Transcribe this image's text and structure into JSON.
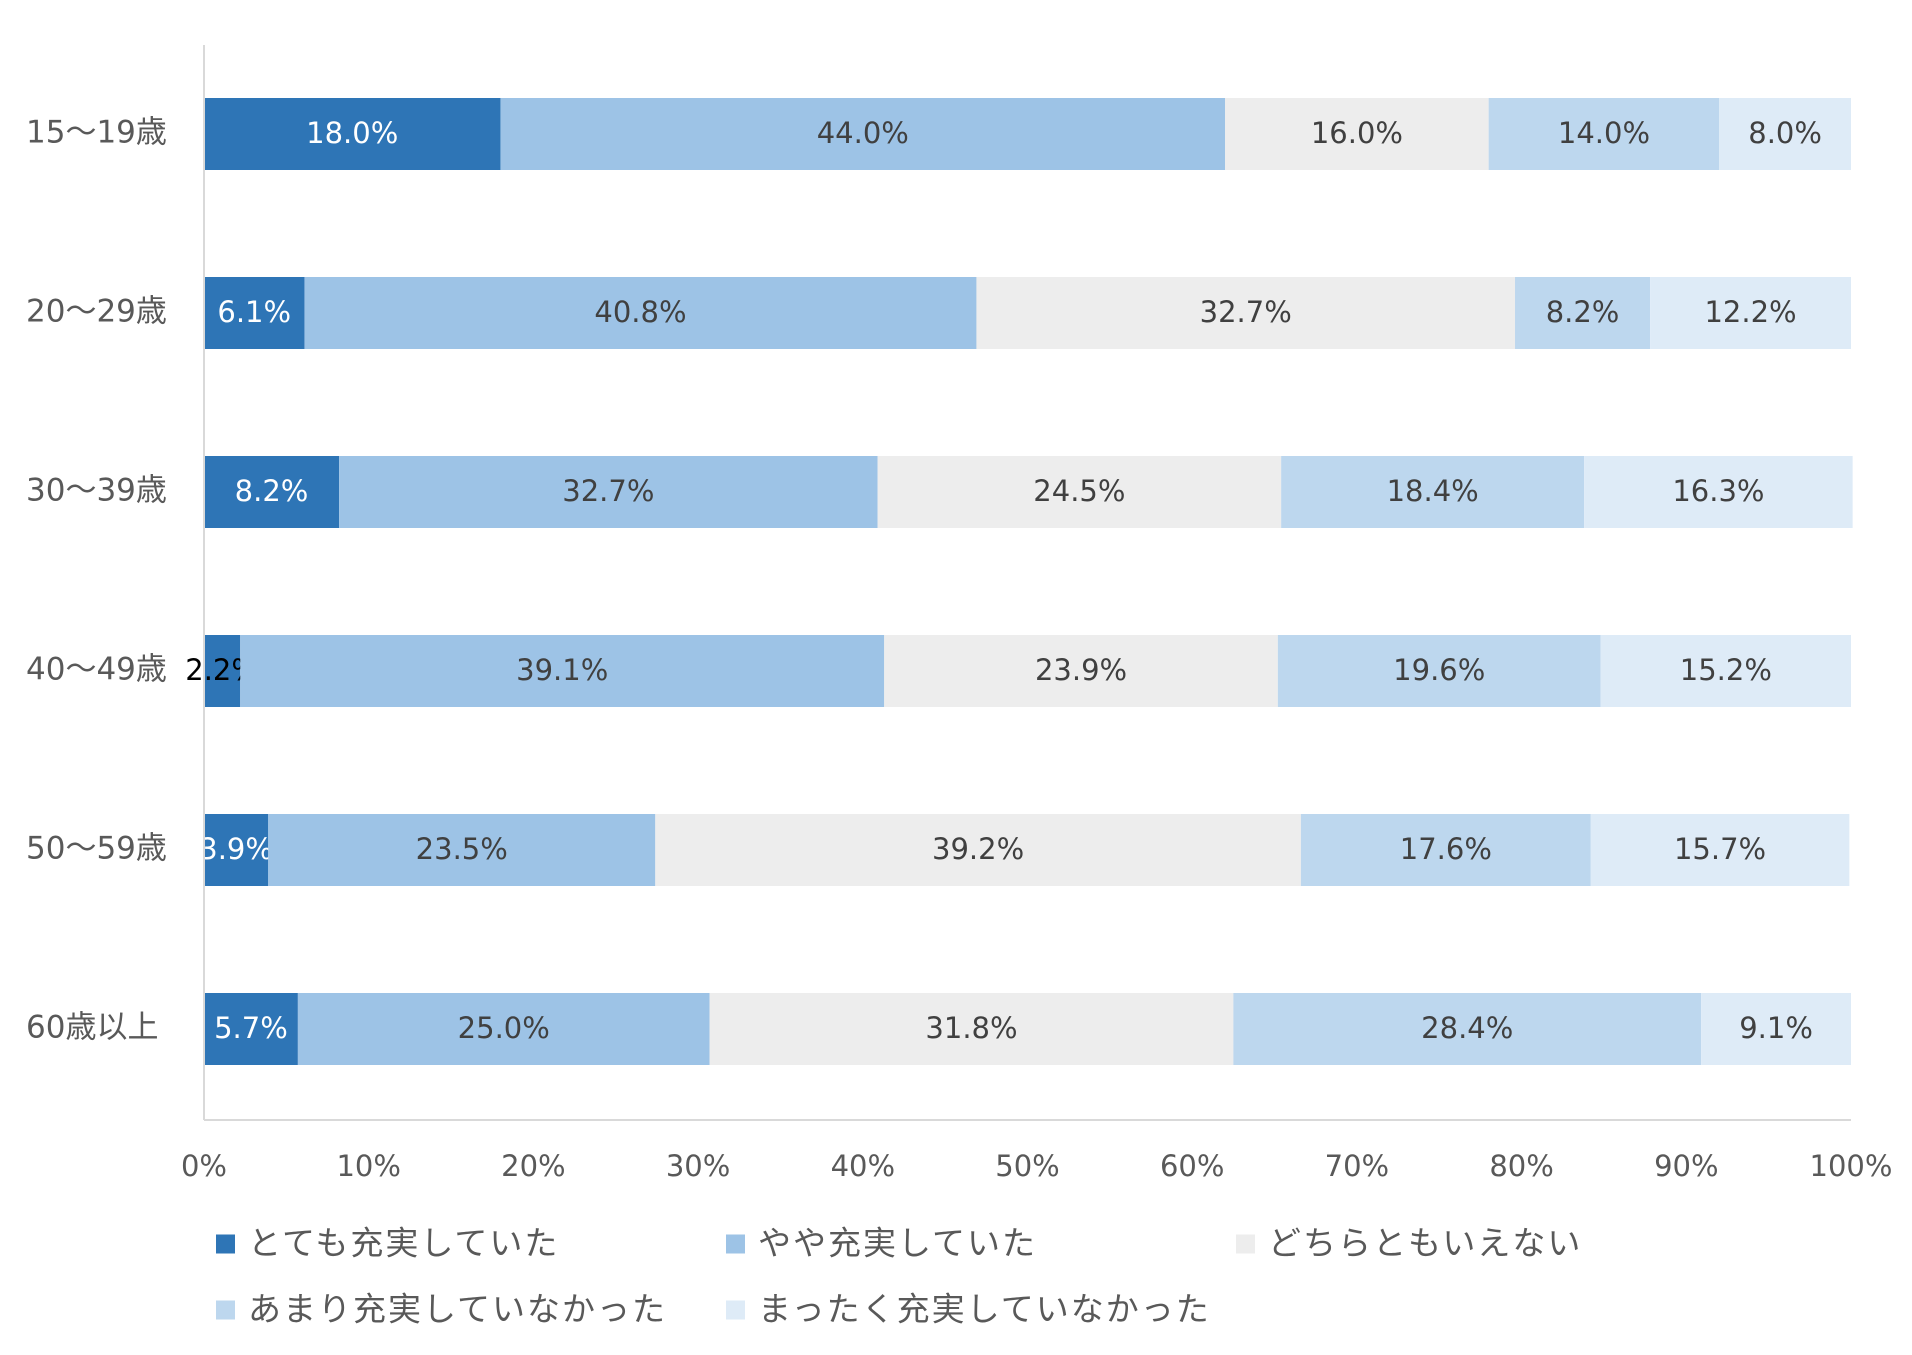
{
  "chart_data": {
    "type": "bar",
    "orientation": "horizontal",
    "stacked": true,
    "percent_stacked": true,
    "title": "",
    "xlabel": "",
    "ylabel": "",
    "xlim": [
      0,
      100
    ],
    "x_ticks": [
      "0%",
      "10%",
      "20%",
      "30%",
      "40%",
      "50%",
      "60%",
      "70%",
      "80%",
      "90%",
      "100%"
    ],
    "grid": false,
    "legend_position": "bottom",
    "categories": [
      "15〜19歳",
      "20〜29歳",
      "30〜39歳",
      "40〜49歳",
      "50〜59歳",
      "60歳以上"
    ],
    "series": [
      {
        "name": "とても充実していた",
        "color": "#2E75B6",
        "label_color": "#ffffff",
        "values": [
          18.0,
          6.1,
          8.2,
          2.2,
          3.9,
          5.7
        ],
        "labels": [
          "18.0%",
          "6.1%",
          "8.2%",
          "2.2%",
          "3.9%",
          "5.7%"
        ]
      },
      {
        "name": "やや充実していた",
        "color": "#9DC3E6",
        "label_color": "#404040",
        "values": [
          44.0,
          40.8,
          32.7,
          39.1,
          23.5,
          25.0
        ],
        "labels": [
          "44.0%",
          "40.8%",
          "32.7%",
          "39.1%",
          "23.5%",
          "25.0%"
        ]
      },
      {
        "name": "どちらともいえない",
        "color": "#EDEDED",
        "label_color": "#404040",
        "values": [
          16.0,
          32.7,
          24.5,
          23.9,
          39.2,
          31.8
        ],
        "labels": [
          "16.0%",
          "32.7%",
          "24.5%",
          "23.9%",
          "39.2%",
          "31.8%"
        ]
      },
      {
        "name": "あまり充実していなかった",
        "color": "#BDD7EE",
        "label_color": "#404040",
        "values": [
          14.0,
          8.2,
          18.4,
          19.6,
          17.6,
          28.4
        ],
        "labels": [
          "14.0%",
          "8.2%",
          "18.4%",
          "19.6%",
          "17.6%",
          "28.4%"
        ]
      },
      {
        "name": "まったく充実していなかった",
        "color": "#DEEBF7",
        "label_color": "#404040",
        "values": [
          8.0,
          12.2,
          16.3,
          15.2,
          15.7,
          9.1
        ],
        "labels": [
          "8.0%",
          "12.2%",
          "16.3%",
          "15.2%",
          "15.7%",
          "9.1%"
        ]
      }
    ]
  }
}
